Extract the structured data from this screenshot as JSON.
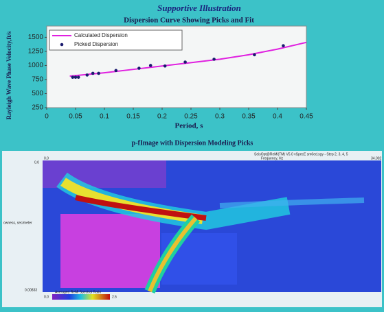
{
  "slide": {
    "title": "Supportive Illustration"
  },
  "chart_data": {
    "type": "line",
    "title": "Dispersion Curve Showing Picks and Fit",
    "x_label": "Period, s",
    "y_label": "Rayleigh Wave Phase Velocity,ft/s",
    "xlim": [
      0,
      0.45
    ],
    "xticks": [
      0,
      0.05,
      0.1,
      0.15,
      0.2,
      0.25,
      0.3,
      0.35,
      0.4,
      0.45
    ],
    "ylim": [
      250,
      1700
    ],
    "yticks": [
      250,
      500,
      750,
      1000,
      1250,
      1500
    ],
    "legend": "top-left",
    "series": [
      {
        "name": "Calculated Dispersion",
        "color": "#e020e0",
        "style": "line",
        "x": [
          0.04,
          0.1,
          0.15,
          0.2,
          0.25,
          0.3,
          0.35,
          0.4,
          0.45
        ],
        "values": [
          810,
          870,
          930,
          990,
          1050,
          1110,
          1190,
          1290,
          1410
        ]
      },
      {
        "name": "Picked Dispersion",
        "color": "#1a1a6e",
        "style": "marker",
        "x": [
          0.045,
          0.05,
          0.055,
          0.07,
          0.08,
          0.09,
          0.12,
          0.16,
          0.18,
          0.205,
          0.24,
          0.29,
          0.36,
          0.41
        ],
        "values": [
          790,
          790,
          790,
          830,
          860,
          860,
          910,
          950,
          1000,
          990,
          1060,
          1110,
          1190,
          1350
        ]
      }
    ]
  },
  "heatmap": {
    "title": "p-fImage with Dispersion Modeling Picks",
    "header": "SeisOpt@ReMi(TM) V5.0 vSpecE sm6ed.sgy - Step 2, 3, 4, 5",
    "x_label": "Frequency, Hz",
    "x_start": "0.0",
    "x_end": "34.002",
    "y_label": "owness, sec/meter",
    "y_start": "0.0",
    "y_end": "0.00833",
    "colorbar_label": "Averaged ReMi Spectral Ratio",
    "colorbar_min": "0.0",
    "colorbar_max": "2.5"
  }
}
